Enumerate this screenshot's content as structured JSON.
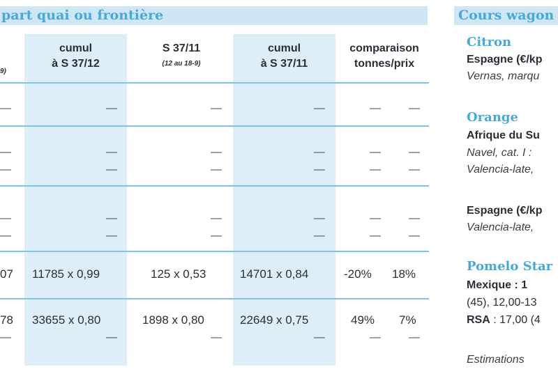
{
  "left_band": {
    "title": "part quai ou frontière"
  },
  "right_band": {
    "title": "Cours wagon"
  },
  "headers": {
    "col0_sub": "9)",
    "col1_line1": "cumul",
    "col1_line2": "à S 37/12",
    "col2_line1": "S 37/11",
    "col2_sub": "(12 au 18-9)",
    "col3_line1": "cumul",
    "col3_line2": "à S 37/11",
    "col4_line1": "comparaison",
    "col4_line2": "tonnes/prix"
  },
  "dash": "—",
  "rows": [
    {
      "c0": "07",
      "c1": "11785 x 0,99",
      "c2": "125 x 0,53",
      "c3": "14701 x 0,84",
      "c4a": "-20%",
      "c4b": "18%"
    },
    {
      "c0": "78",
      "c1": "33655 x 0,80",
      "c2": "1898 x 0,80",
      "c3": "22649 x 0,75",
      "c4a": "49%",
      "c4b": "7%"
    }
  ],
  "sidebar": {
    "citron": "Citron",
    "espagne1": "Espagne (€/kp",
    "vernas": "Vernas, marqu",
    "orange": "Orange",
    "afrique": "Afrique du Su",
    "navel": "Navel, cat. I :",
    "valencia1": "Valencia-late,",
    "espagne2": "Espagne (€/kp",
    "valencia2": "Valencia-late,",
    "pomelo": "Pomelo Star",
    "mexique": "Mexique  :  1",
    "mexique_rest": "(45), 12,00-13",
    "rsa": "RSA",
    "rsa_rest": " : 17,00 (4",
    "estimations": "Estimations"
  }
}
